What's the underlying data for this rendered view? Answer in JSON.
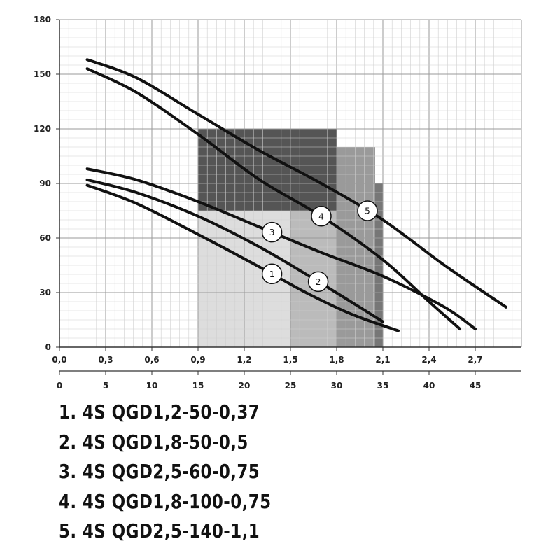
{
  "chart_data": {
    "type": "line",
    "title": "",
    "xlabel": "",
    "ylabel": "",
    "xlim": [
      0,
      3.0
    ],
    "ylim": [
      0,
      180
    ],
    "x_ticks": [
      "0,0",
      "0,3",
      "0,6",
      "0,9",
      "1,2",
      "1,5",
      "1,8",
      "2,1",
      "2,4",
      "2,7"
    ],
    "x2_lim": [
      0,
      50
    ],
    "x2_ticks": [
      "0",
      "5",
      "10",
      "15",
      "20",
      "25",
      "30",
      "35",
      "40",
      "45"
    ],
    "y_ticks": [
      "0",
      "30",
      "60",
      "90",
      "120",
      "150",
      "180"
    ],
    "grid": true,
    "regions": [
      {
        "x_range": [
          0.9,
          1.8
        ],
        "y_top": 120,
        "shade": "#555555"
      },
      {
        "x_range": [
          1.8,
          2.1
        ],
        "y_top": 90,
        "shade": "#777777"
      },
      {
        "x_range": [
          0.9,
          1.5
        ],
        "y_top": 75,
        "shade": "#dddddd"
      },
      {
        "x_range": [
          1.5,
          1.8
        ],
        "y_top": 75,
        "shade": "#bbbbbb"
      },
      {
        "x_range": [
          1.8,
          2.05
        ],
        "y_top": 110,
        "shade": "#9a9a9a"
      }
    ],
    "series": [
      {
        "name": "1",
        "marker_x": 1.38,
        "x": [
          0.18,
          0.5,
          0.9,
          1.3,
          1.6,
          1.9,
          2.2
        ],
        "y": [
          89,
          79,
          62,
          44,
          30,
          18,
          9
        ]
      },
      {
        "name": "2",
        "marker_x": 1.68,
        "x": [
          0.18,
          0.5,
          0.9,
          1.3,
          1.7,
          2.1
        ],
        "y": [
          92,
          85,
          72,
          55,
          35,
          14
        ]
      },
      {
        "name": "3",
        "marker_x": 1.38,
        "x": [
          0.18,
          0.5,
          0.9,
          1.3,
          1.7,
          2.1,
          2.5,
          2.7
        ],
        "y": [
          98,
          92,
          80,
          66,
          52,
          39,
          22,
          10
        ]
      },
      {
        "name": "4",
        "marker_x": 1.7,
        "x": [
          0.18,
          0.5,
          0.9,
          1.3,
          1.7,
          2.1,
          2.4,
          2.6
        ],
        "y": [
          153,
          140,
          117,
          92,
          72,
          48,
          25,
          10
        ]
      },
      {
        "name": "5",
        "marker_x": 2.0,
        "x": [
          0.18,
          0.5,
          0.9,
          1.3,
          1.7,
          2.1,
          2.5,
          2.9
        ],
        "y": [
          158,
          148,
          128,
          108,
          90,
          70,
          45,
          22
        ]
      }
    ]
  },
  "legend": [
    "1. 4S QGD1,2-50-0,37",
    "2. 4S QGD1,8-50-0,5",
    "3. 4S QGD2,5-60-0,75",
    "4. 4S QGD1,8-100-0,75",
    "5. 4S QGD2,5-140-1,1"
  ]
}
